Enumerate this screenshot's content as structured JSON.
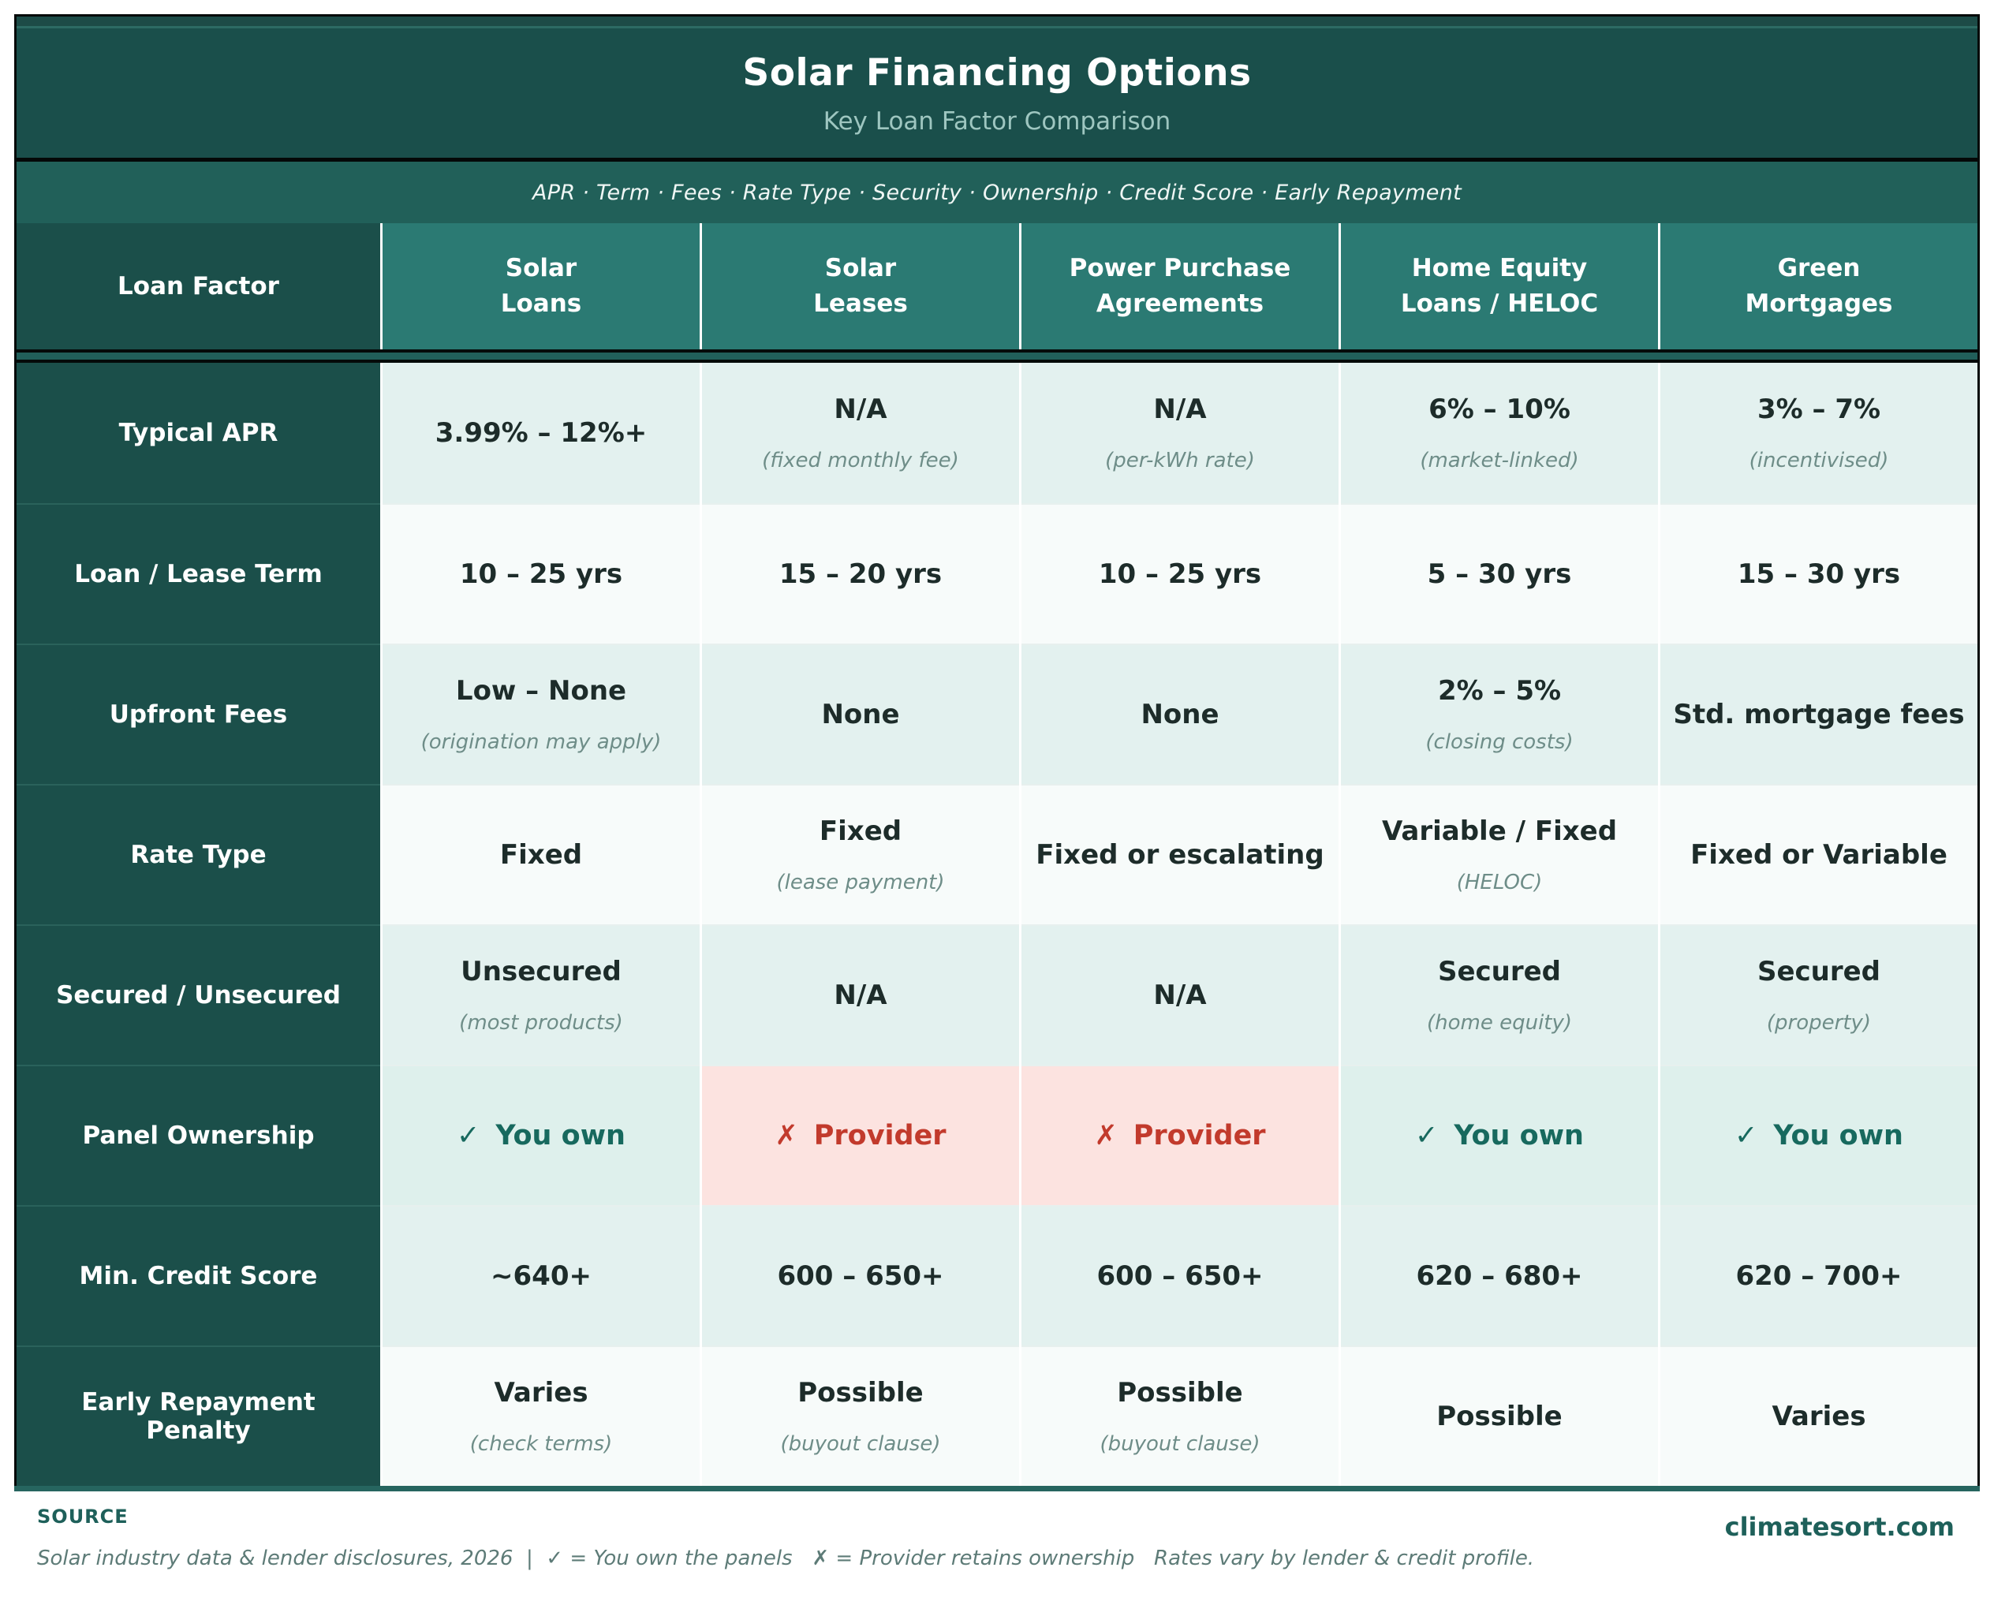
{
  "header": {
    "title": "Solar Financing Options",
    "subtitle": "Key Loan Factor Comparison",
    "factors_strip": "APR  ·  Term  ·  Fees  ·  Rate Type  ·  Security  ·  Ownership  ·  Credit Score  ·  Early Repayment"
  },
  "table": {
    "corner_label": "Loan Factor",
    "columns": [
      {
        "label": "Solar\nLoans"
      },
      {
        "label": "Solar\nLeases"
      },
      {
        "label": "Power Purchase\nAgreements"
      },
      {
        "label": "Home Equity\nLoans / HELOC"
      },
      {
        "label": "Green\nMortgages"
      }
    ],
    "rows": [
      {
        "label": "Typical APR",
        "cells": [
          {
            "value": "3.99% – 12%+"
          },
          {
            "value": "N/A",
            "note": "(fixed monthly fee)"
          },
          {
            "value": "N/A",
            "note": "(per-kWh rate)"
          },
          {
            "value": "6% – 10%",
            "note": "(market-linked)"
          },
          {
            "value": "3% – 7%",
            "note": "(incentivised)"
          }
        ]
      },
      {
        "label": "Loan / Lease Term",
        "cells": [
          {
            "value": "10 – 25 yrs"
          },
          {
            "value": "15 – 20 yrs"
          },
          {
            "value": "10 – 25 yrs"
          },
          {
            "value": "5 – 30 yrs"
          },
          {
            "value": "15 – 30 yrs"
          }
        ]
      },
      {
        "label": "Upfront Fees",
        "cells": [
          {
            "value": "Low – None",
            "note": "(origination may apply)"
          },
          {
            "value": "None"
          },
          {
            "value": "None"
          },
          {
            "value": "2% – 5%",
            "note": "(closing costs)"
          },
          {
            "value": "Std. mortgage fees"
          }
        ]
      },
      {
        "label": "Rate Type",
        "cells": [
          {
            "value": "Fixed"
          },
          {
            "value": "Fixed",
            "note": "(lease payment)"
          },
          {
            "value": "Fixed or escalating"
          },
          {
            "value": "Variable / Fixed",
            "note": "(HELOC)"
          },
          {
            "value": "Fixed or Variable"
          }
        ]
      },
      {
        "label": "Secured / Unsecured",
        "cells": [
          {
            "value": "Unsecured",
            "note": "(most products)"
          },
          {
            "value": "N/A"
          },
          {
            "value": "N/A"
          },
          {
            "value": "Secured",
            "note": "(home equity)"
          },
          {
            "value": "Secured",
            "note": "(property)"
          }
        ]
      },
      {
        "label": "Panel Ownership",
        "cells": [
          {
            "value": "You own",
            "icon": "✓",
            "type": "own"
          },
          {
            "value": "Provider",
            "icon": "✗",
            "type": "provider"
          },
          {
            "value": "Provider",
            "icon": "✗",
            "type": "provider"
          },
          {
            "value": "You own",
            "icon": "✓",
            "type": "own"
          },
          {
            "value": "You own",
            "icon": "✓",
            "type": "own"
          }
        ]
      },
      {
        "label": "Min. Credit Score",
        "cells": [
          {
            "value": "~640+"
          },
          {
            "value": "600 – 650+"
          },
          {
            "value": "600 – 650+"
          },
          {
            "value": "620 – 680+"
          },
          {
            "value": "620 – 700+"
          }
        ]
      },
      {
        "label": "Early Repayment Penalty",
        "cells": [
          {
            "value": "Varies",
            "note": "(check terms)"
          },
          {
            "value": "Possible",
            "note": "(buyout clause)"
          },
          {
            "value": "Possible",
            "note": "(buyout clause)"
          },
          {
            "value": "Possible"
          },
          {
            "value": "Varies"
          }
        ]
      }
    ]
  },
  "footer": {
    "source_label": "SOURCE",
    "source_text": "Solar industry data & lender disclosures, 2026  |  ✓ = You own the panels   ✗ = Provider retains ownership   Rates vary by lender & credit profile.",
    "site": "climatesort.com"
  },
  "colors": {
    "header_bg": "#1a4f4b",
    "strip_bg": "#216059",
    "column_header_bg": "#2b7a73",
    "label_column_bg": "#1b4f4a",
    "row_tint_bg": "#e3f1ef",
    "row_plain_bg": "#f7fbfa",
    "own_bg": "#def0ec",
    "provider_bg": "#fce3e0",
    "own_text": "#17695e",
    "provider_text": "#c23a2c",
    "accent_teal": "#1e605a"
  },
  "chart_data": {
    "type": "table",
    "title": "Solar Financing Options",
    "subtitle": "Key Loan Factor Comparison",
    "columns": [
      "Loan Factor",
      "Solar Loans",
      "Solar Leases",
      "Power Purchase Agreements",
      "Home Equity Loans / HELOC",
      "Green Mortgages"
    ],
    "rows": [
      [
        "Typical APR",
        "3.99% – 12%+",
        "N/A (fixed monthly fee)",
        "N/A (per-kWh rate)",
        "6% – 10% (market-linked)",
        "3% – 7% (incentivised)"
      ],
      [
        "Loan / Lease Term",
        "10 – 25 yrs",
        "15 – 20 yrs",
        "10 – 25 yrs",
        "5 – 30 yrs",
        "15 – 30 yrs"
      ],
      [
        "Upfront Fees",
        "Low – None (origination may apply)",
        "None",
        "None",
        "2% – 5% (closing costs)",
        "Std. mortgage fees"
      ],
      [
        "Rate Type",
        "Fixed",
        "Fixed (lease payment)",
        "Fixed or escalating",
        "Variable / Fixed (HELOC)",
        "Fixed or Variable"
      ],
      [
        "Secured / Unsecured",
        "Unsecured (most products)",
        "N/A",
        "N/A",
        "Secured (home equity)",
        "Secured (property)"
      ],
      [
        "Panel Ownership",
        "✓ You own",
        "✗ Provider",
        "✗ Provider",
        "✓ You own",
        "✓ You own"
      ],
      [
        "Min. Credit Score",
        "~640+",
        "600 – 650+",
        "600 – 650+",
        "620 – 680+",
        "620 – 700+"
      ],
      [
        "Early Repayment Penalty",
        "Varies (check terms)",
        "Possible (buyout clause)",
        "Possible (buyout clause)",
        "Possible",
        "Varies"
      ]
    ]
  }
}
